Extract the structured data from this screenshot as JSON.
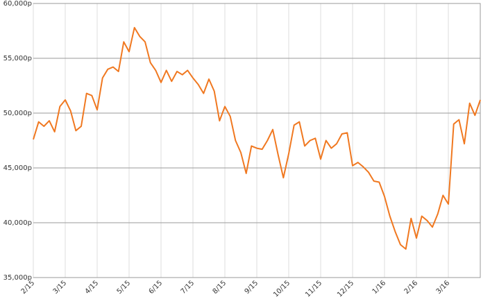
{
  "chart_data": {
    "type": "line",
    "categories": [
      "2/15",
      null,
      null,
      null,
      null,
      null,
      "3/15",
      null,
      null,
      null,
      null,
      null,
      "4/15",
      null,
      null,
      null,
      null,
      null,
      "5/15",
      null,
      null,
      null,
      null,
      null,
      "6/15",
      null,
      null,
      null,
      null,
      null,
      "7/15",
      null,
      null,
      null,
      null,
      null,
      "8/15",
      null,
      null,
      null,
      null,
      null,
      "9/15",
      null,
      null,
      null,
      null,
      null,
      "10/15",
      null,
      null,
      null,
      null,
      null,
      "11/15",
      null,
      null,
      null,
      null,
      null,
      "12/15",
      null,
      null,
      null,
      null,
      null,
      "1/16",
      null,
      null,
      null,
      null,
      null,
      "2/16",
      null,
      null,
      null,
      null,
      null,
      "3/16",
      null,
      null,
      null,
      null,
      null,
      null
    ],
    "series": [
      {
        "color": "#f07820",
        "values": [
          47600,
          49200,
          48800,
          49300,
          48300,
          50600,
          51200,
          50200,
          48400,
          48800,
          51800,
          51600,
          50300,
          53200,
          54000,
          54200,
          53800,
          56500,
          55600,
          57800,
          57000,
          56500,
          54600,
          53900,
          52800,
          53900,
          52900,
          53800,
          53500,
          53900,
          53200,
          52600,
          51800,
          53100,
          52000,
          49300,
          50600,
          49700,
          47500,
          46400,
          44500,
          47000,
          46800,
          46700,
          47500,
          48500,
          46200,
          44100,
          46300,
          48900,
          49200,
          47000,
          47500,
          47700,
          45800,
          47500,
          46800,
          47200,
          48100,
          48200,
          45200,
          45500,
          45100,
          44600,
          43800,
          43700,
          42400,
          40600,
          39200,
          38000,
          37600,
          40400,
          38600,
          40600,
          40200,
          39600,
          40800,
          42500,
          41700,
          49000,
          49400,
          47200,
          50900,
          49800,
          51200
        ]
      }
    ],
    "ylim": [
      35000,
      60000
    ],
    "yticks": [
      {
        "value": 35000,
        "label": "35,000p"
      },
      {
        "value": 40000,
        "label": "40,000p"
      },
      {
        "value": 45000,
        "label": "45,000p"
      },
      {
        "value": 50000,
        "label": "50,000p"
      },
      {
        "value": 55000,
        "label": "55,000p"
      },
      {
        "value": 60000,
        "label": "60,000p"
      }
    ],
    "grid": true
  }
}
